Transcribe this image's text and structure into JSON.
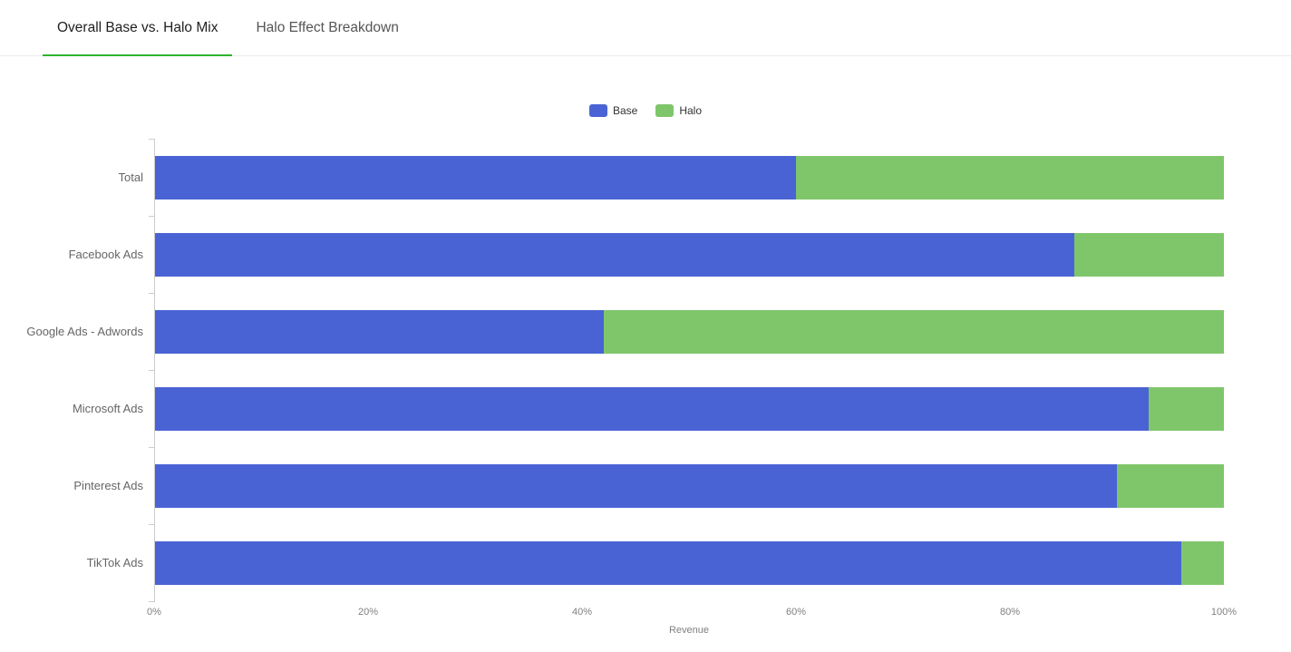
{
  "tabs": [
    {
      "label": "Overall Base vs. Halo Mix",
      "active": true
    },
    {
      "label": "Halo Effect Breakdown",
      "active": false
    }
  ],
  "colors": {
    "tab_accent": "#2eb52e",
    "base_blue": "#4a63d4",
    "halo_green": "#7fc66b",
    "axis_line": "#cccccc"
  },
  "chart_data": {
    "type": "bar",
    "orientation": "horizontal",
    "stacked": true,
    "unit": "percent_of_revenue",
    "title": "",
    "xlabel": "Revenue",
    "x_ticks": [
      "0%",
      "20%",
      "40%",
      "60%",
      "80%",
      "100%"
    ],
    "xlim": [
      0,
      100
    ],
    "grid": false,
    "legend_position": "top-center",
    "categories": [
      "Total",
      "Facebook Ads",
      "Google Ads - Adwords",
      "Microsoft Ads",
      "Pinterest Ads",
      "TikTok Ads"
    ],
    "series": [
      {
        "name": "Base",
        "color": "#4a63d4",
        "values": [
          60,
          86,
          42,
          93,
          90,
          96
        ]
      },
      {
        "name": "Halo",
        "color": "#7fc66b",
        "values": [
          40,
          14,
          58,
          7,
          10,
          4
        ]
      }
    ]
  }
}
